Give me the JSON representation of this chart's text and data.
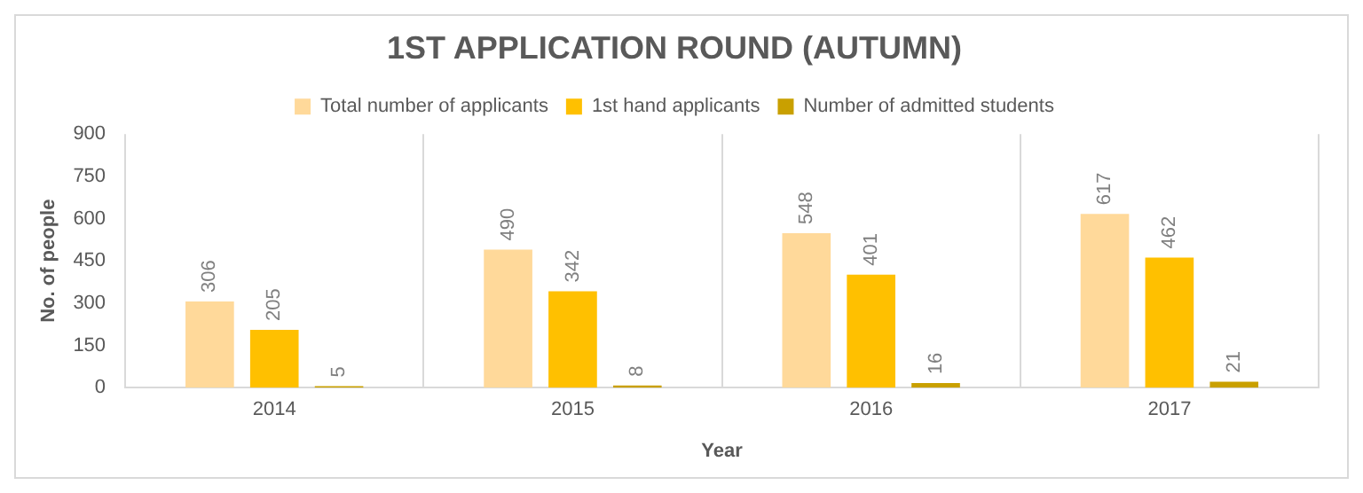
{
  "chart_data": {
    "type": "bar",
    "title": "1ST APPLICATION ROUND (AUTUMN)",
    "xlabel": "Year",
    "ylabel": "No. of people",
    "categories": [
      "2014",
      "2015",
      "2016",
      "2017"
    ],
    "series": [
      {
        "name": "Total number of applicants",
        "color": "#ffd99a",
        "values": [
          306,
          490,
          548,
          617
        ]
      },
      {
        "name": "1st hand applicants",
        "color": "#ffc000",
        "values": [
          205,
          342,
          401,
          462
        ]
      },
      {
        "name": "Number of admitted students",
        "color": "#c9a000",
        "values": [
          5,
          8,
          16,
          21
        ]
      }
    ],
    "ylim": [
      0,
      900
    ],
    "yticks": [
      0,
      150,
      300,
      450,
      600,
      750,
      900
    ],
    "grid": "x",
    "legend": "top",
    "data_labels": true
  }
}
